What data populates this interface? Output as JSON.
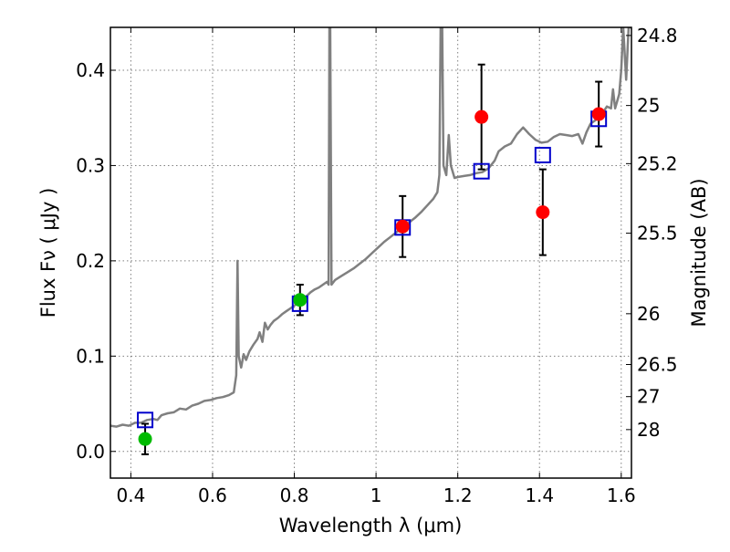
{
  "chart_data": {
    "type": "scatter",
    "xlabel": "Wavelength  λ (μm)",
    "ylabel": "Flux  Fν  ( μJy )",
    "y2label": "Magnitude (AB)",
    "xlim": [
      0.35,
      1.625
    ],
    "ylim": [
      -0.028,
      0.445
    ],
    "grid": true,
    "x_ticks": [
      0.4,
      0.6,
      0.8,
      1.0,
      1.2,
      1.4,
      1.6
    ],
    "x_tick_labels": [
      "0.4",
      "0.6",
      "0.8",
      "1",
      "1.2",
      "1.4",
      "1.6"
    ],
    "y_ticks": [
      0.0,
      0.1,
      0.2,
      0.3,
      0.4
    ],
    "y_tick_labels": [
      "0.0",
      "0.1",
      "0.2",
      "0.3",
      "0.4"
    ],
    "y2_ticks": [
      {
        "label": "24.8",
        "flux": 0.4365
      },
      {
        "label": "25",
        "flux": 0.363
      },
      {
        "label": "25.2",
        "flux": 0.302
      },
      {
        "label": "25.5",
        "flux": 0.229
      },
      {
        "label": "26",
        "flux": 0.1445
      },
      {
        "label": "26.5",
        "flux": 0.0912
      },
      {
        "label": "27",
        "flux": 0.0575
      },
      {
        "label": "28",
        "flux": 0.0229
      }
    ],
    "series": [
      {
        "marker": "circle",
        "color": "#00bb00",
        "points": [
          {
            "x": 0.435,
            "y": 0.013,
            "err": 0.016
          },
          {
            "x": 0.814,
            "y": 0.159,
            "err": 0.016
          }
        ]
      },
      {
        "marker": "circle",
        "color": "#ff0000",
        "points": [
          {
            "x": 1.065,
            "y": 0.236,
            "err": 0.032
          },
          {
            "x": 1.258,
            "y": 0.351,
            "err": 0.055
          },
          {
            "x": 1.408,
            "y": 0.251,
            "err": 0.045
          },
          {
            "x": 1.545,
            "y": 0.354,
            "err": 0.034
          }
        ]
      },
      {
        "marker": "open-square",
        "color": "#0000cc",
        "points": [
          {
            "x": 0.435,
            "y": 0.033
          },
          {
            "x": 0.814,
            "y": 0.155
          },
          {
            "x": 1.065,
            "y": 0.235
          },
          {
            "x": 1.258,
            "y": 0.294
          },
          {
            "x": 1.408,
            "y": 0.311
          },
          {
            "x": 1.545,
            "y": 0.349
          }
        ]
      },
      {
        "marker": "line",
        "color": "#808080",
        "points": [
          [
            0.35,
            0.027
          ],
          [
            0.365,
            0.026
          ],
          [
            0.38,
            0.028
          ],
          [
            0.395,
            0.027
          ],
          [
            0.41,
            0.03
          ],
          [
            0.425,
            0.03
          ],
          [
            0.44,
            0.033
          ],
          [
            0.455,
            0.034
          ],
          [
            0.465,
            0.033
          ],
          [
            0.475,
            0.038
          ],
          [
            0.49,
            0.04
          ],
          [
            0.505,
            0.041
          ],
          [
            0.52,
            0.045
          ],
          [
            0.535,
            0.044
          ],
          [
            0.55,
            0.048
          ],
          [
            0.565,
            0.05
          ],
          [
            0.58,
            0.053
          ],
          [
            0.595,
            0.054
          ],
          [
            0.61,
            0.056
          ],
          [
            0.625,
            0.057
          ],
          [
            0.64,
            0.059
          ],
          [
            0.652,
            0.062
          ],
          [
            0.658,
            0.08
          ],
          [
            0.661,
            0.2
          ],
          [
            0.664,
            0.1
          ],
          [
            0.67,
            0.088
          ],
          [
            0.676,
            0.102
          ],
          [
            0.682,
            0.096
          ],
          [
            0.69,
            0.105
          ],
          [
            0.7,
            0.112
          ],
          [
            0.71,
            0.118
          ],
          [
            0.715,
            0.125
          ],
          [
            0.722,
            0.115
          ],
          [
            0.728,
            0.135
          ],
          [
            0.735,
            0.128
          ],
          [
            0.742,
            0.133
          ],
          [
            0.75,
            0.137
          ],
          [
            0.76,
            0.14
          ],
          [
            0.77,
            0.144
          ],
          [
            0.78,
            0.147
          ],
          [
            0.79,
            0.15
          ],
          [
            0.8,
            0.153
          ],
          [
            0.81,
            0.156
          ],
          [
            0.82,
            0.16
          ],
          [
            0.83,
            0.163
          ],
          [
            0.84,
            0.167
          ],
          [
            0.85,
            0.17
          ],
          [
            0.86,
            0.172
          ],
          [
            0.87,
            0.175
          ],
          [
            0.88,
            0.178
          ],
          [
            0.884,
            0.175
          ],
          [
            0.886,
            0.445
          ],
          [
            0.888,
            0.445
          ],
          [
            0.891,
            0.175
          ],
          [
            0.9,
            0.18
          ],
          [
            0.915,
            0.184
          ],
          [
            0.93,
            0.188
          ],
          [
            0.945,
            0.192
          ],
          [
            0.96,
            0.197
          ],
          [
            0.975,
            0.202
          ],
          [
            0.99,
            0.208
          ],
          [
            1.005,
            0.214
          ],
          [
            1.02,
            0.22
          ],
          [
            1.035,
            0.225
          ],
          [
            1.05,
            0.23
          ],
          [
            1.065,
            0.235
          ],
          [
            1.08,
            0.24
          ],
          [
            1.095,
            0.245
          ],
          [
            1.11,
            0.251
          ],
          [
            1.125,
            0.258
          ],
          [
            1.14,
            0.265
          ],
          [
            1.15,
            0.272
          ],
          [
            1.155,
            0.29
          ],
          [
            1.158,
            0.445
          ],
          [
            1.162,
            0.445
          ],
          [
            1.165,
            0.3
          ],
          [
            1.172,
            0.29
          ],
          [
            1.178,
            0.332
          ],
          [
            1.183,
            0.3
          ],
          [
            1.192,
            0.287
          ],
          [
            1.2,
            0.288
          ],
          [
            1.215,
            0.289
          ],
          [
            1.23,
            0.29
          ],
          [
            1.245,
            0.292
          ],
          [
            1.26,
            0.293
          ],
          [
            1.275,
            0.297
          ],
          [
            1.29,
            0.305
          ],
          [
            1.3,
            0.315
          ],
          [
            1.315,
            0.32
          ],
          [
            1.33,
            0.323
          ],
          [
            1.345,
            0.333
          ],
          [
            1.36,
            0.34
          ],
          [
            1.375,
            0.333
          ],
          [
            1.39,
            0.327
          ],
          [
            1.405,
            0.324
          ],
          [
            1.42,
            0.325
          ],
          [
            1.435,
            0.33
          ],
          [
            1.45,
            0.333
          ],
          [
            1.465,
            0.332
          ],
          [
            1.48,
            0.331
          ],
          [
            1.495,
            0.333
          ],
          [
            1.505,
            0.323
          ],
          [
            1.515,
            0.335
          ],
          [
            1.525,
            0.344
          ],
          [
            1.535,
            0.347
          ],
          [
            1.55,
            0.352
          ],
          [
            1.565,
            0.362
          ],
          [
            1.575,
            0.36
          ],
          [
            1.58,
            0.38
          ],
          [
            1.585,
            0.36
          ],
          [
            1.595,
            0.375
          ],
          [
            1.6,
            0.4
          ],
          [
            1.605,
            0.445
          ],
          [
            1.612,
            0.39
          ],
          [
            1.618,
            0.445
          ],
          [
            1.625,
            0.445
          ]
        ]
      }
    ]
  }
}
